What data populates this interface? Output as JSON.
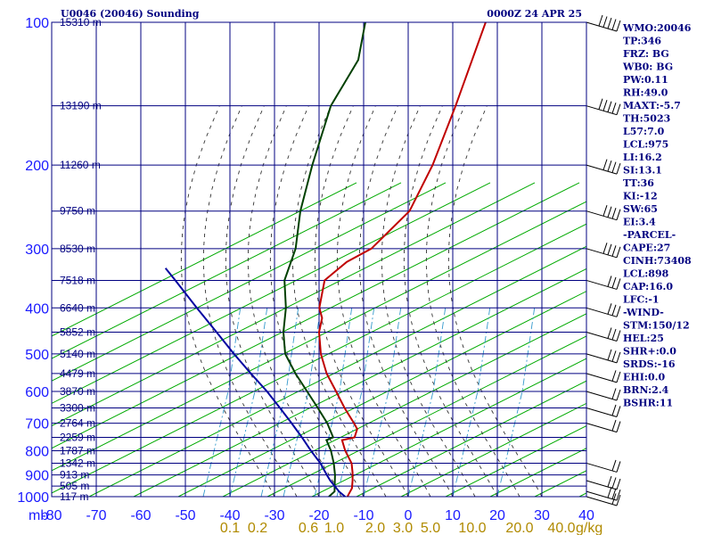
{
  "header": {
    "station": "U0046 (20046) Sounding",
    "time": "0000Z 24 APR 25"
  },
  "chart_data": {
    "type": "line",
    "title": "U0046 (20046) Sounding",
    "xlabel": "",
    "ylabel": "",
    "pressure_unit_label": "mb",
    "y_scale": "log-pressure",
    "ylim": [
      1000,
      100
    ],
    "xlim": [
      -80,
      0
    ],
    "skew": true,
    "pressure_ticks": [
      "100",
      "200",
      "300",
      "400",
      "500",
      "600",
      "700",
      "800",
      "900",
      "1000"
    ],
    "temperature_ticks": [
      "-80",
      "-70",
      "-60",
      "-50",
      "-40",
      "-30",
      "-20",
      "-10",
      "0",
      "10",
      "20",
      "30",
      "40"
    ],
    "mixing_ratio_ticks": [
      "0.1",
      "0.2",
      "0.6",
      "1.0",
      "2.0",
      "3.0",
      "5.0",
      "10.0",
      "20.0",
      "40.0"
    ],
    "mixing_ratio_unit": "g/kg",
    "height_labels": [
      {
        "p": 100,
        "label": "15310 m"
      },
      {
        "p": 150,
        "label": "13190 m"
      },
      {
        "p": 200,
        "label": "11260 m"
      },
      {
        "p": 250,
        "label": "9750 m"
      },
      {
        "p": 300,
        "label": "8530 m"
      },
      {
        "p": 350,
        "label": "7518 m"
      },
      {
        "p": 400,
        "label": "6640 m"
      },
      {
        "p": 450,
        "label": "5852 m"
      },
      {
        "p": 500,
        "label": "5140 m"
      },
      {
        "p": 550,
        "label": "4479 m"
      },
      {
        "p": 600,
        "label": "3870 m"
      },
      {
        "p": 650,
        "label": "3300 m"
      },
      {
        "p": 700,
        "label": "2764 m"
      },
      {
        "p": 750,
        "label": "2259 m"
      },
      {
        "p": 800,
        "label": "1787 m"
      },
      {
        "p": 850,
        "label": "1342 m"
      },
      {
        "p": 900,
        "label": "913 m"
      },
      {
        "p": 950,
        "label": "505 m"
      },
      {
        "p": 1000,
        "label": "117 m"
      }
    ],
    "series": [
      {
        "color": "#c00000",
        "points": [
          {
            "p": 1007,
            "t": -13.5
          },
          {
            "p": 990,
            "t": -13.8
          },
          {
            "p": 960,
            "t": -14.2
          },
          {
            "p": 925,
            "t": -15.5
          },
          {
            "p": 890,
            "t": -17.0
          },
          {
            "p": 850,
            "t": -19.0
          },
          {
            "p": 800,
            "t": -22.8
          },
          {
            "p": 760,
            "t": -25.5
          },
          {
            "p": 750,
            "t": -23.2
          },
          {
            "p": 720,
            "t": -24.2
          },
          {
            "p": 700,
            "t": -26.0
          },
          {
            "p": 650,
            "t": -31.0
          },
          {
            "p": 600,
            "t": -36.0
          },
          {
            "p": 550,
            "t": -41.5
          },
          {
            "p": 500,
            "t": -46.5
          },
          {
            "p": 450,
            "t": -51.0
          },
          {
            "p": 420,
            "t": -53.0
          },
          {
            "p": 400,
            "t": -55.5
          },
          {
            "p": 350,
            "t": -59.5
          },
          {
            "p": 320,
            "t": -58.0
          },
          {
            "p": 300,
            "t": -55.0
          },
          {
            "p": 250,
            "t": -53.5
          },
          {
            "p": 200,
            "t": -57.0
          },
          {
            "p": 150,
            "t": -63.0
          },
          {
            "p": 100,
            "t": -72.0
          }
        ]
      },
      {
        "color": "#004000",
        "points": [
          {
            "p": 1000,
            "t": -17.8
          },
          {
            "p": 975,
            "t": -17.5
          },
          {
            "p": 950,
            "t": -18.5
          },
          {
            "p": 900,
            "t": -20.5
          },
          {
            "p": 850,
            "t": -23.0
          },
          {
            "p": 800,
            "t": -26.0
          },
          {
            "p": 760,
            "t": -29.0
          },
          {
            "p": 750,
            "t": -28.0
          },
          {
            "p": 700,
            "t": -32.0
          },
          {
            "p": 650,
            "t": -37.0
          },
          {
            "p": 600,
            "t": -42.5
          },
          {
            "p": 550,
            "t": -48.5
          },
          {
            "p": 500,
            "t": -54.5
          },
          {
            "p": 450,
            "t": -59.0
          },
          {
            "p": 400,
            "t": -63.0
          },
          {
            "p": 350,
            "t": -68.5
          },
          {
            "p": 300,
            "t": -72.0
          },
          {
            "p": 250,
            "t": -78.0
          },
          {
            "p": 200,
            "t": -84.0
          },
          {
            "p": 150,
            "t": -91.0
          },
          {
            "p": 120,
            "t": -93.5
          },
          {
            "p": 100,
            "t": -99.0
          }
        ]
      },
      {
        "color": "#0000a0",
        "points": [
          {
            "p": 1007,
            "t": -13.5
          },
          {
            "p": 975,
            "t": -16.5
          },
          {
            "p": 925,
            "t": -20.5
          },
          {
            "p": 898,
            "t": -22.5
          },
          {
            "p": 850,
            "t": -26.0
          },
          {
            "p": 800,
            "t": -30.5
          },
          {
            "p": 750,
            "t": -35.0
          },
          {
            "p": 700,
            "t": -40.0
          },
          {
            "p": 650,
            "t": -45.5
          },
          {
            "p": 600,
            "t": -51.5
          },
          {
            "p": 550,
            "t": -58.5
          },
          {
            "p": 500,
            "t": -66.0
          },
          {
            "p": 450,
            "t": -74.0
          },
          {
            "p": 400,
            "t": -83.0
          },
          {
            "p": 350,
            "t": -93.0
          },
          {
            "p": 330,
            "t": -97.5
          }
        ]
      }
    ],
    "wind_barbs": [
      {
        "p": 100,
        "dir": 280,
        "spd": 50
      },
      {
        "p": 150,
        "dir": 270,
        "spd": 45
      },
      {
        "p": 200,
        "dir": 265,
        "spd": 40
      },
      {
        "p": 250,
        "dir": 265,
        "spd": 35
      },
      {
        "p": 300,
        "dir": 260,
        "spd": 35
      },
      {
        "p": 350,
        "dir": 260,
        "spd": 30
      },
      {
        "p": 400,
        "dir": 255,
        "spd": 30
      },
      {
        "p": 450,
        "dir": 255,
        "spd": 30
      },
      {
        "p": 500,
        "dir": 250,
        "spd": 25
      },
      {
        "p": 550,
        "dir": 250,
        "spd": 20
      },
      {
        "p": 600,
        "dir": 245,
        "spd": 20
      },
      {
        "p": 650,
        "dir": 245,
        "spd": 15
      },
      {
        "p": 700,
        "dir": 240,
        "spd": 15
      },
      {
        "p": 850,
        "dir": 230,
        "spd": 15
      },
      {
        "p": 925,
        "dir": 220,
        "spd": 25
      },
      {
        "p": 975,
        "dir": 215,
        "spd": 25
      },
      {
        "p": 1000,
        "dir": 210,
        "spd": 20
      }
    ]
  },
  "indices": [
    "WMO:20046",
    "TP:346",
    "FRZ: BG",
    "WB0: BG",
    "PW:0.11",
    "RH:49.0",
    "MAXT:-5.7",
    "TH:5023",
    "L57:7.0",
    "LCL:975",
    "LI:16.2",
    "SI:13.1",
    "TT:36",
    "KI:-12",
    "SW:65",
    "EI:3.4",
    "-PARCEL-",
    "CAPE:27",
    "CINH:73408",
    "LCL:898",
    "CAP:16.0",
    "LFC:-1",
    "-WIND-",
    "STM:150/12",
    "HEL:25",
    "SHR+:0.0",
    "SRDS:-16",
    "EHI:0.0",
    "BRN:2.4",
    "BSHR:11"
  ],
  "colors": {
    "isobar": "#000080",
    "isotherm": "#000080",
    "dry_adiabat": "#00aa00",
    "moist_adiabat": "#333333",
    "mixing_ratio": "#3399cc",
    "temperature": "#c00000",
    "dewpoint": "#004000",
    "parcel": "#0000a0"
  }
}
